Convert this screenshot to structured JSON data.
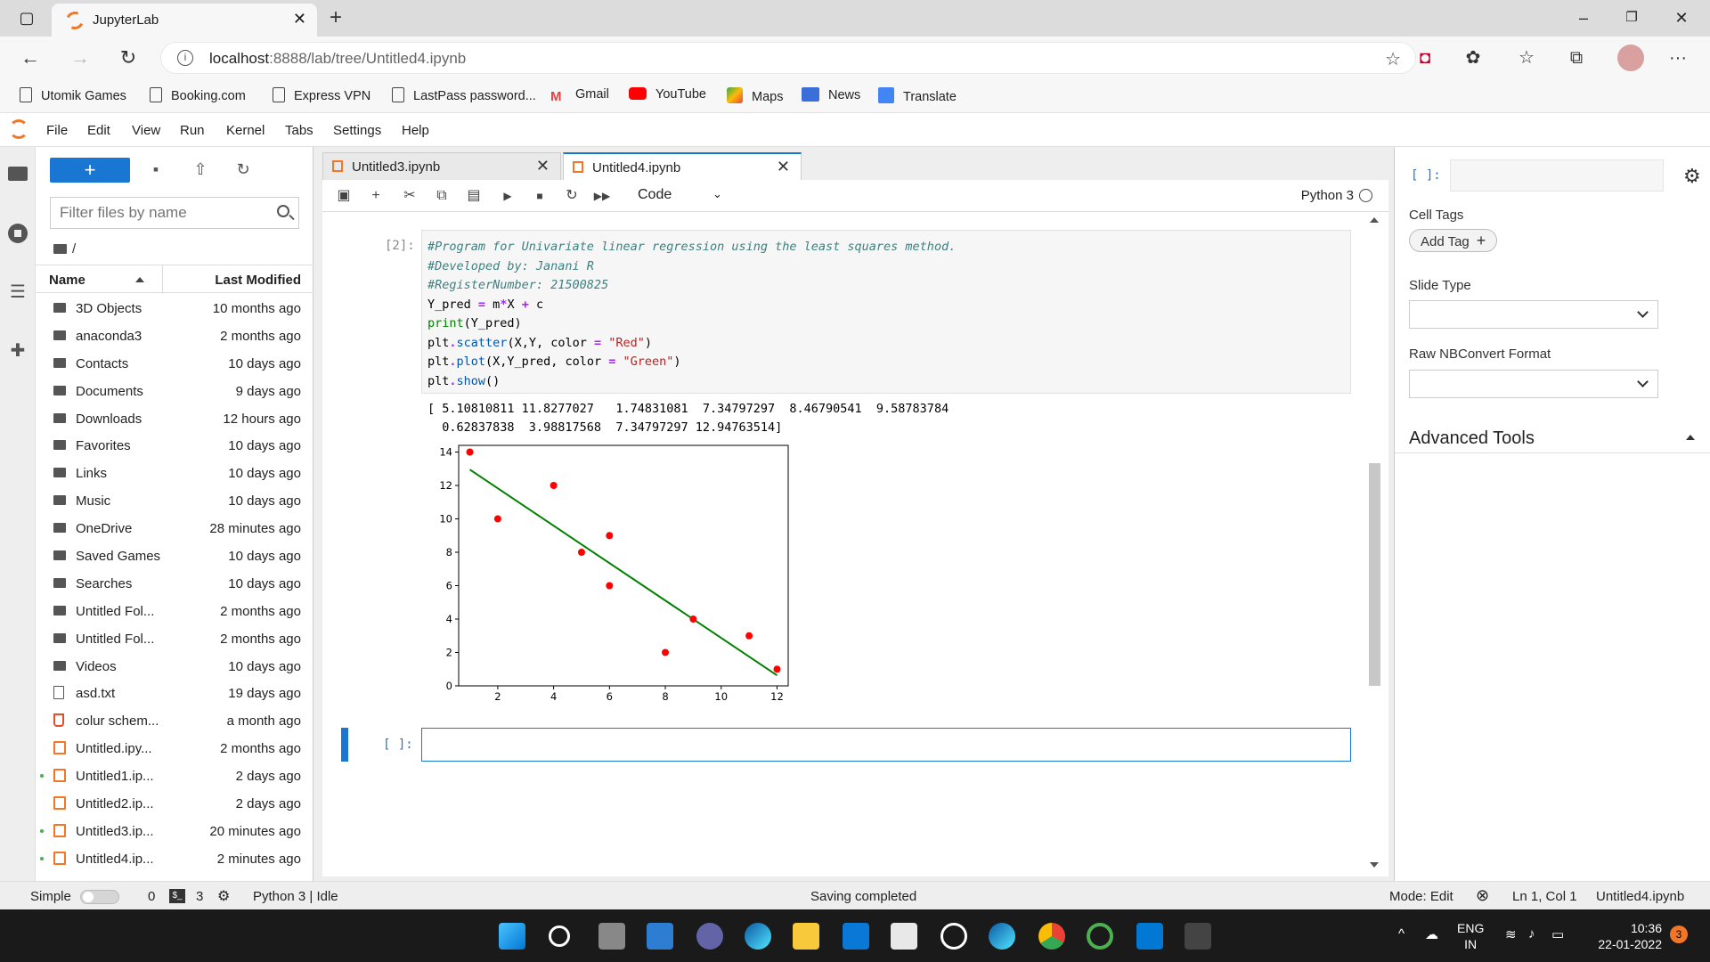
{
  "browser": {
    "tab_title": "JupyterLab",
    "url_host": "localhost",
    "url_path": ":8888/lab/tree/Untitled4.ipynb",
    "bookmarks": [
      "Utomik Games",
      "Booking.com",
      "Express VPN",
      "LastPass password...",
      "Gmail",
      "YouTube",
      "Maps",
      "News",
      "Translate"
    ]
  },
  "menubar": [
    "File",
    "Edit",
    "View",
    "Run",
    "Kernel",
    "Tabs",
    "Settings",
    "Help"
  ],
  "filebrowser": {
    "new_label": "+",
    "filter_placeholder": "Filter files by name",
    "breadcrumb": "/",
    "col_name": "Name",
    "col_modified": "Last Modified",
    "items": [
      {
        "name": "3D Objects",
        "modified": "10 months ago",
        "type": "folder"
      },
      {
        "name": "anaconda3",
        "modified": "2 months ago",
        "type": "folder"
      },
      {
        "name": "Contacts",
        "modified": "10 days ago",
        "type": "folder"
      },
      {
        "name": "Documents",
        "modified": "9 days ago",
        "type": "folder"
      },
      {
        "name": "Downloads",
        "modified": "12 hours ago",
        "type": "folder"
      },
      {
        "name": "Favorites",
        "modified": "10 days ago",
        "type": "folder"
      },
      {
        "name": "Links",
        "modified": "10 days ago",
        "type": "folder"
      },
      {
        "name": "Music",
        "modified": "10 days ago",
        "type": "folder"
      },
      {
        "name": "OneDrive",
        "modified": "28 minutes ago",
        "type": "folder"
      },
      {
        "name": "Saved Games",
        "modified": "10 days ago",
        "type": "folder"
      },
      {
        "name": "Searches",
        "modified": "10 days ago",
        "type": "folder"
      },
      {
        "name": "Untitled Fol...",
        "modified": "2 months ago",
        "type": "folder"
      },
      {
        "name": "Untitled Fol...",
        "modified": "2 months ago",
        "type": "folder"
      },
      {
        "name": "Videos",
        "modified": "10 days ago",
        "type": "folder"
      },
      {
        "name": "asd.txt",
        "modified": "19 days ago",
        "type": "file"
      },
      {
        "name": "colur schem...",
        "modified": "a month ago",
        "type": "html"
      },
      {
        "name": "Untitled.ipy...",
        "modified": "2 months ago",
        "type": "nb"
      },
      {
        "name": "Untitled1.ip...",
        "modified": "2 days ago",
        "type": "nb",
        "running": true
      },
      {
        "name": "Untitled2.ip...",
        "modified": "2 days ago",
        "type": "nb"
      },
      {
        "name": "Untitled3.ip...",
        "modified": "20 minutes ago",
        "type": "nb",
        "running": true
      },
      {
        "name": "Untitled4.ip...",
        "modified": "2 minutes ago",
        "type": "nb",
        "running": true
      }
    ]
  },
  "doc_tabs": [
    {
      "title": "Untitled3.ipynb",
      "active": false
    },
    {
      "title": "Untitled4.ipynb",
      "active": true
    }
  ],
  "notebook_toolbar": {
    "cell_type": "Code",
    "kernel": "Python 3"
  },
  "cells": {
    "cell1": {
      "prompt": "[2]:",
      "code": [
        [
          {
            "c": "cm",
            "t": "#Program for Univariate linear regression using the least squares method."
          }
        ],
        [
          {
            "c": "cm",
            "t": "#Developed by: Janani R"
          }
        ],
        [
          {
            "c": "cm",
            "t": "#RegisterNumber: 21500825"
          }
        ],
        [
          {
            "c": "",
            "t": "Y_pred "
          },
          {
            "c": "op",
            "t": "="
          },
          {
            "c": "",
            "t": " m"
          },
          {
            "c": "op",
            "t": "*"
          },
          {
            "c": "",
            "t": "X "
          },
          {
            "c": "op",
            "t": "+"
          },
          {
            "c": "",
            "t": " c"
          }
        ],
        [
          {
            "c": "fn",
            "t": "print"
          },
          {
            "c": "",
            "t": "(Y_pred)"
          }
        ],
        [
          {
            "c": "",
            "t": "plt"
          },
          {
            "c": "op",
            "t": "."
          },
          {
            "c": "at",
            "t": "scatter"
          },
          {
            "c": "",
            "t": "(X,Y, color "
          },
          {
            "c": "op",
            "t": "="
          },
          {
            "c": "",
            "t": " "
          },
          {
            "c": "st",
            "t": "\"Red\""
          },
          {
            "c": "",
            "t": ")"
          }
        ],
        [
          {
            "c": "",
            "t": "plt"
          },
          {
            "c": "op",
            "t": "."
          },
          {
            "c": "at",
            "t": "plot"
          },
          {
            "c": "",
            "t": "(X,Y_pred, color "
          },
          {
            "c": "op",
            "t": "="
          },
          {
            "c": "",
            "t": " "
          },
          {
            "c": "st",
            "t": "\"Green\""
          },
          {
            "c": "",
            "t": ")"
          }
        ],
        [
          {
            "c": "",
            "t": "plt"
          },
          {
            "c": "op",
            "t": "."
          },
          {
            "c": "at",
            "t": "show"
          },
          {
            "c": "",
            "t": "()"
          }
        ]
      ],
      "output_lines": [
        "[ 5.10810811 11.8277027   1.74831081  7.34797297  8.46790541  9.58783784",
        "  0.62837838  3.98817568  7.34797297 12.94763514]"
      ]
    },
    "cell2_prompt": "[ ]:"
  },
  "chart_data": {
    "type": "scatter",
    "xlim": [
      0.6,
      12.4
    ],
    "ylim": [
      0,
      14.4
    ],
    "xticks": [
      2,
      4,
      6,
      8,
      10,
      12
    ],
    "yticks": [
      0,
      2,
      4,
      6,
      8,
      10,
      12,
      14
    ],
    "grid": false,
    "series": [
      {
        "kind": "scatter",
        "color": "#ff0000",
        "points": [
          [
            1,
            14
          ],
          [
            2,
            10
          ],
          [
            4,
            12
          ],
          [
            5,
            8
          ],
          [
            6,
            9
          ],
          [
            6,
            6
          ],
          [
            8,
            2
          ],
          [
            9,
            4
          ],
          [
            11,
            3
          ],
          [
            12,
            1
          ]
        ]
      },
      {
        "kind": "line",
        "color": "#008000",
        "points": [
          [
            1,
            12.95
          ],
          [
            12,
            0.63
          ]
        ]
      }
    ]
  },
  "inspector": {
    "prompt": "[ ]:",
    "cell_tags_label": "Cell Tags",
    "add_tag_label": "Add Tag",
    "slide_type_label": "Slide Type",
    "raw_label": "Raw NBConvert Format",
    "advanced_label": "Advanced Tools"
  },
  "statusbar": {
    "mode_label": "Simple",
    "count_a": "0",
    "count_b": "3",
    "kernel_status": "Python 3 | Idle",
    "message": "Saving completed",
    "mode": "Mode: Edit",
    "position": "Ln 1, Col 1",
    "filename": "Untitled4.ipynb"
  },
  "taskbar": {
    "lang1": "ENG",
    "lang2": "IN",
    "time": "10:36",
    "date": "22-01-2022",
    "notifications": "3"
  }
}
